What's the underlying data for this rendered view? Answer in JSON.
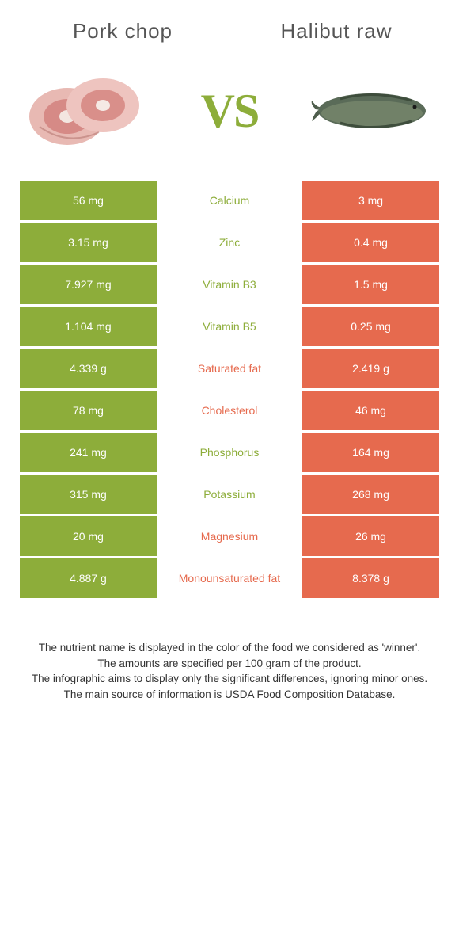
{
  "food_a": {
    "title": "Pork chop"
  },
  "food_b": {
    "title": "Halibut raw"
  },
  "vs_label": "VS",
  "colors": {
    "green": "#8dad3a",
    "orange": "#e66a4e",
    "bg": "#ffffff"
  },
  "rows": [
    {
      "left": "56 mg",
      "label": "Calcium",
      "right": "3 mg",
      "winner": "green"
    },
    {
      "left": "3.15 mg",
      "label": "Zinc",
      "right": "0.4 mg",
      "winner": "green"
    },
    {
      "left": "7.927 mg",
      "label": "Vitamin B3",
      "right": "1.5 mg",
      "winner": "green"
    },
    {
      "left": "1.104 mg",
      "label": "Vitamin B5",
      "right": "0.25 mg",
      "winner": "green"
    },
    {
      "left": "4.339 g",
      "label": "Saturated fat",
      "right": "2.419 g",
      "winner": "orange"
    },
    {
      "left": "78 mg",
      "label": "Cholesterol",
      "right": "46 mg",
      "winner": "orange"
    },
    {
      "left": "241 mg",
      "label": "Phosphorus",
      "right": "164 mg",
      "winner": "green"
    },
    {
      "left": "315 mg",
      "label": "Potassium",
      "right": "268 mg",
      "winner": "green"
    },
    {
      "left": "20 mg",
      "label": "Magnesium",
      "right": "26 mg",
      "winner": "orange"
    },
    {
      "left": "4.887 g",
      "label": "Monounsaturated fat",
      "right": "8.378 g",
      "winner": "orange"
    }
  ],
  "footer": {
    "l1": "The nutrient name is displayed in the color of the food we considered as 'winner'.",
    "l2": "The amounts are specified per 100 gram of the product.",
    "l3": "The infographic aims to display only the significant differences, ignoring minor ones.",
    "l4": "The main source of information is USDA Food Composition Database."
  }
}
